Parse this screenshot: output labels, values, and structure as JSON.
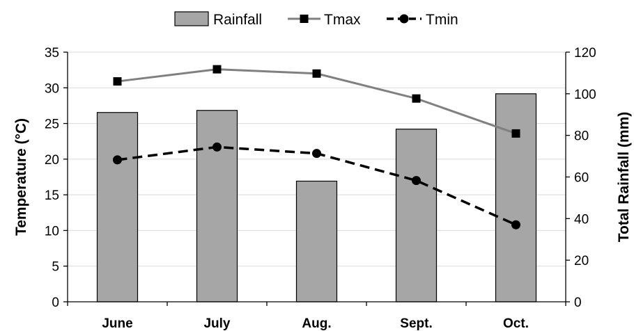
{
  "chart_data": {
    "type": "bar",
    "title": "",
    "categories": [
      "June",
      "July",
      "Aug.",
      "Sept.",
      "Oct."
    ],
    "bar_series": {
      "name": "Rainfall",
      "axis": "right",
      "color": "#a6a6a6",
      "values": [
        91,
        92,
        58,
        83,
        100
      ]
    },
    "line_series": [
      {
        "name": "Tmax",
        "axis": "left",
        "color": "#808080",
        "style": "solid",
        "marker": "square",
        "values": [
          30.9,
          32.6,
          32.0,
          28.5,
          23.6
        ]
      },
      {
        "name": "Tmin",
        "axis": "left",
        "color": "#000000",
        "style": "dashed",
        "marker": "circle",
        "values": [
          19.9,
          21.7,
          20.8,
          17.0,
          10.8
        ]
      }
    ],
    "y_left": {
      "label": "Temperature (°C)",
      "ylim": [
        0,
        35
      ],
      "ticks": [
        "0",
        "5",
        "10",
        "15",
        "20",
        "25",
        "30",
        "35"
      ]
    },
    "y_right": {
      "label": "Total Rainfall (mm)",
      "ylim": [
        0,
        120
      ],
      "ticks": [
        "0",
        "20",
        "40",
        "60",
        "80",
        "100",
        "120"
      ]
    },
    "grid": true,
    "legend_position": "top-center"
  }
}
